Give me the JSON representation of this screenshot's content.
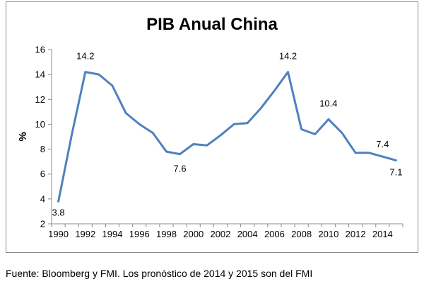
{
  "chart_data": {
    "type": "line",
    "title": "PIB Anual China",
    "xlabel": "",
    "ylabel": "%",
    "x": [
      1990,
      1991,
      1992,
      1993,
      1994,
      1995,
      1996,
      1997,
      1998,
      1999,
      2000,
      2001,
      2002,
      2003,
      2004,
      2005,
      2006,
      2007,
      2008,
      2009,
      2010,
      2011,
      2012,
      2013,
      2014,
      2015
    ],
    "series": [
      {
        "values": [
          3.8,
          9.2,
          14.2,
          14.0,
          13.1,
          10.9,
          10.0,
          9.3,
          7.8,
          7.6,
          8.4,
          8.3,
          9.1,
          10.0,
          10.1,
          11.3,
          12.7,
          14.2,
          9.6,
          9.2,
          10.4,
          9.3,
          7.7,
          7.7,
          7.4,
          7.1
        ]
      }
    ],
    "x_tick_labels": [
      "1990",
      "1992",
      "1994",
      "1996",
      "1998",
      "2000",
      "2002",
      "2004",
      "2006",
      "2008",
      "2010",
      "2012",
      "2014"
    ],
    "y_tick_labels": [
      "2",
      "4",
      "6",
      "8",
      "10",
      "12",
      "14",
      "16"
    ],
    "ylim": [
      2,
      16
    ],
    "grid": false,
    "legend": "none",
    "line_color": "#4f81bd",
    "data_labels": [
      {
        "x": 1990,
        "text": "3.8"
      },
      {
        "x": 1992,
        "text": "14.2"
      },
      {
        "x": 1999,
        "text": "7.6"
      },
      {
        "x": 2007,
        "text": "14.2"
      },
      {
        "x": 2010,
        "text": "10.4"
      },
      {
        "x": 2014,
        "text": "7.4"
      },
      {
        "x": 2015,
        "text": "7.1"
      }
    ]
  },
  "caption": "Fuente: Bloomberg y FMI. Los pronóstico de 2014 y 2015 son del FMI"
}
